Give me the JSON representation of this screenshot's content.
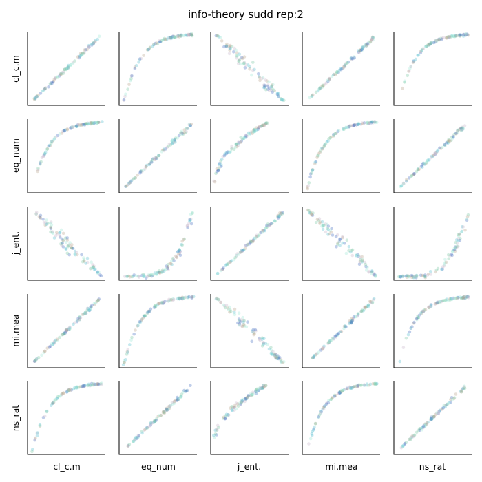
{
  "chart_data": {
    "type": "scatter",
    "title": "info-theory sudd rep:2",
    "variables": [
      "cl_c.m",
      "eq_num",
      "j_ent.",
      "mi.mea",
      "ns_rat"
    ],
    "x_labels": [
      "cl_c.m",
      "eq_num",
      "j_ent.",
      "mi.mea",
      "ns_rat"
    ],
    "y_labels": [
      "cl_c.m",
      "eq_num",
      "j_ent.",
      "mi.mea",
      "ns_rat"
    ],
    "grid": false,
    "point_colors": [
      "#4a73c4",
      "#5bbfd0",
      "#7fc9a6",
      "#b9a68f",
      "#c9b8cc",
      "#a0e8d8"
    ],
    "relationships": [
      [
        "linear-pos",
        "inverse-decay",
        "linear-neg-fan",
        "linear-pos",
        "inverse-decay"
      ],
      [
        "inverse-decay",
        "linear-pos",
        "saturating-rise",
        "inverse-decay",
        "linear-pos"
      ],
      [
        "linear-neg-fan",
        "exponential-rise",
        "linear-pos",
        "linear-neg-fan",
        "exponential-rise"
      ],
      [
        "linear-pos",
        "inverse-decay",
        "linear-neg-fan",
        "linear-pos",
        "inverse-decay"
      ],
      [
        "inverse-decay",
        "linear-pos",
        "saturating-rise",
        "inverse-decay",
        "linear-pos"
      ]
    ]
  }
}
